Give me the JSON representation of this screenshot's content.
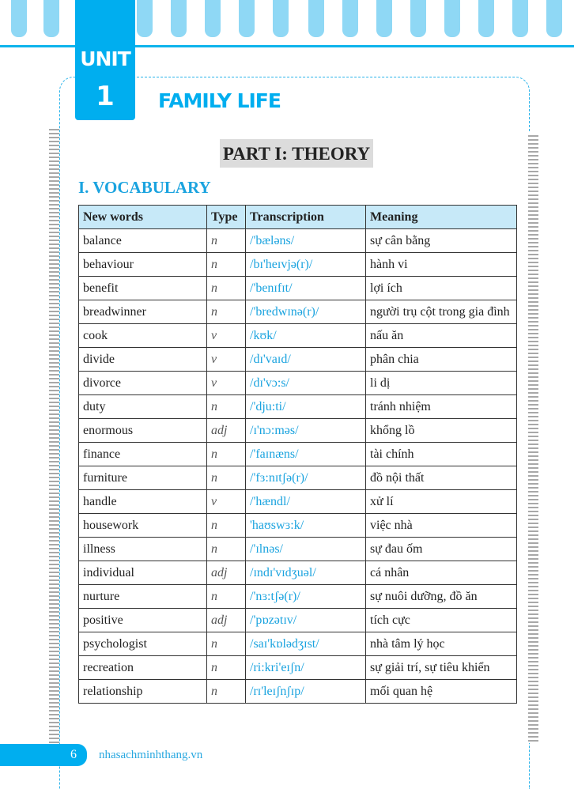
{
  "header": {
    "unit_label": "UNIT",
    "unit_number": "1",
    "unit_title": "FAMILY LIFE"
  },
  "part_title": "PART I: THEORY",
  "section_title": "I. VOCABULARY",
  "table": {
    "headers": [
      "New words",
      "Type",
      "Transcription",
      "Meaning"
    ],
    "rows": [
      [
        "balance",
        "n",
        "/'bæləns/",
        "sự cân bằng"
      ],
      [
        "behaviour",
        "n",
        "/bɪ'heɪvjə(r)/",
        "hành vi"
      ],
      [
        "benefit",
        "n",
        "/'benɪfɪt/",
        "lợi ích"
      ],
      [
        "breadwinner",
        "n",
        "/'bredwɪnə(r)/",
        "người trụ cột trong gia đình"
      ],
      [
        "cook",
        "v",
        "/kʊk/",
        "nấu ăn"
      ],
      [
        "divide",
        "v",
        "/dɪ'vaɪd/",
        "phân chia"
      ],
      [
        "divorce",
        "v",
        "/dɪ'vɔ:s/",
        "li dị"
      ],
      [
        "duty",
        "n",
        "/'dju:ti/",
        "tránh nhiệm"
      ],
      [
        "enormous",
        "adj",
        "/ɪ'nɔ:məs/",
        "khổng lồ"
      ],
      [
        "finance",
        "n",
        "/'faɪnæns/",
        "tài chính"
      ],
      [
        "furniture",
        "n",
        "/'fɜ:nɪtʃə(r)/",
        "đồ nội thất"
      ],
      [
        "handle",
        "v",
        "/'hændl/",
        "xử lí"
      ],
      [
        "housework",
        "n",
        "'haʊswɜ:k/",
        "việc nhà"
      ],
      [
        "illness",
        "n",
        "/'ɪlnəs/",
        "sự đau ốm"
      ],
      [
        "individual",
        "adj",
        "/ɪndɪ'vɪdʒuəl/",
        "cá nhân"
      ],
      [
        "nurture",
        "n",
        "/'nɜ:tʃə(r)/",
        "sự nuôi dưỡng, đồ ăn"
      ],
      [
        "positive",
        "adj",
        "/'pɒzətɪv/",
        "tích cực"
      ],
      [
        "psychologist",
        "n",
        "/saɪ'kɒlədʒɪst/",
        "nhà tâm lý học"
      ],
      [
        "recreation",
        "n",
        "/ri:kri'eɪʃn/",
        "sự giải trí, sự tiêu khiển"
      ],
      [
        "relationship",
        "n",
        "/rɪ'leɪʃnʃɪp/",
        "mối quan hệ"
      ]
    ]
  },
  "footer": {
    "page_number": "6",
    "website": "nhasachminhthang.vn"
  },
  "colors": {
    "accent": "#00aeef",
    "header_bg": "#c7e9f8",
    "part_bg": "#dcdcdc"
  }
}
